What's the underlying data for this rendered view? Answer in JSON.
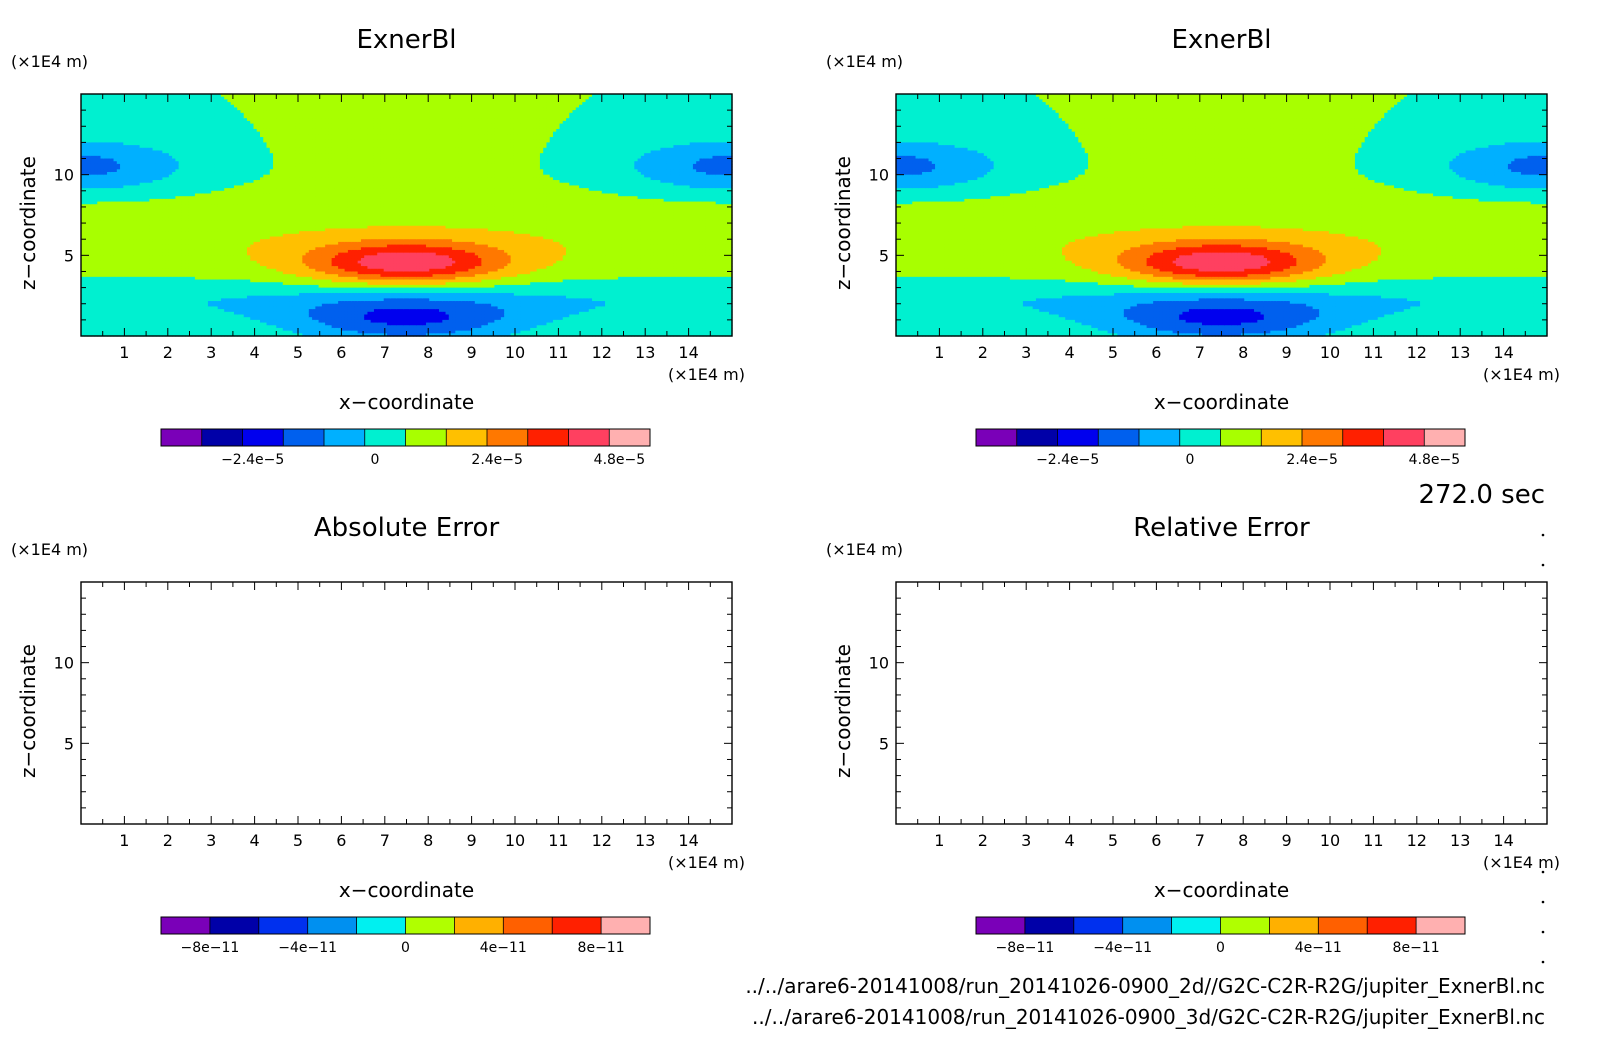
{
  "panels": [
    {
      "title": "ExnerBl",
      "unit_top": "(×1E4 m)",
      "unit_right": "(×1E4 m)",
      "ylabel": "z−coordinate",
      "xlabel": "x−coordinate"
    },
    {
      "title": "ExnerBl",
      "unit_top": "(×1E4 m)",
      "unit_right": "(×1E4 m)",
      "ylabel": "z−coordinate",
      "xlabel": "x−coordinate"
    },
    {
      "title": "Absolute Error",
      "unit_top": "(×1E4 m)",
      "unit_right": "(×1E4 m)",
      "ylabel": "z−coordinate",
      "xlabel": "x−coordinate"
    },
    {
      "title": "Relative Error",
      "unit_top": "(×1E4 m)",
      "unit_right": "(×1E4 m)",
      "ylabel": "z−coordinate",
      "xlabel": "x−coordinate"
    }
  ],
  "time_label": "272.0 sec",
  "file_lines": [
    "../../arare6-20141008/run_20141026-0900_2d//G2C-C2R-R2G/jupiter_ExnerBl.nc",
    "../../arare6-20141008/run_20141026-0900_3d/G2C-C2R-R2G/jupiter_ExnerBl.nc"
  ],
  "chart_data": [
    {
      "type": "heatmap",
      "title": "ExnerBl",
      "xlabel": "x−coordinate",
      "ylabel": "z−coordinate",
      "xlim": [
        0,
        15
      ],
      "ylim": [
        0,
        15
      ],
      "xticks": [
        "1",
        "2",
        "3",
        "4",
        "5",
        "6",
        "7",
        "8",
        "9",
        "10",
        "11",
        "12",
        "13",
        "14"
      ],
      "yticks": [
        "5",
        "10"
      ],
      "field": {
        "center_x": 7.5,
        "positive_peak": 5.2e-05,
        "positive_peak_z": 4.5,
        "negative_min": -3.4e-05,
        "negative_min_z": 1.0,
        "upper_negative_z": 10.5,
        "upper_negative_amp": -2.8e-05
      },
      "colorbar": {
        "levels": [
          -3.6e-05,
          -2.4e-05,
          -1.2e-05,
          0,
          1.2e-05,
          2.4e-05,
          3.6e-05,
          4.8e-05
        ],
        "tick_labels": [
          "−2.4e−5",
          "0",
          "2.4e−5",
          "4.8e−5"
        ],
        "tick_values": [
          -2.4e-05,
          0,
          2.4e-05,
          4.8e-05
        ],
        "min": -4.2e-05,
        "max": 5.4e-05,
        "colors": [
          "#7a00b8",
          "#0000a8",
          "#0000ee",
          "#0060ee",
          "#00b0ff",
          "#00f0d0",
          "#a8ff00",
          "#ffc000",
          "#ff7800",
          "#ff2000",
          "#ff4060",
          "#ffb0b0"
        ]
      }
    },
    {
      "type": "heatmap",
      "title": "ExnerBl",
      "xlabel": "x−coordinate",
      "ylabel": "z−coordinate",
      "xlim": [
        0,
        15
      ],
      "ylim": [
        0,
        15
      ],
      "xticks": [
        "1",
        "2",
        "3",
        "4",
        "5",
        "6",
        "7",
        "8",
        "9",
        "10",
        "11",
        "12",
        "13",
        "14"
      ],
      "yticks": [
        "5",
        "10"
      ],
      "field": {
        "center_x": 7.5,
        "positive_peak": 5.2e-05,
        "positive_peak_z": 4.5,
        "negative_min": -3.4e-05,
        "negative_min_z": 1.0,
        "upper_negative_z": 10.5,
        "upper_negative_amp": -2.8e-05
      },
      "colorbar": {
        "levels": [
          -3.6e-05,
          -2.4e-05,
          -1.2e-05,
          0,
          1.2e-05,
          2.4e-05,
          3.6e-05,
          4.8e-05
        ],
        "tick_labels": [
          "−2.4e−5",
          "0",
          "2.4e−5",
          "4.8e−5"
        ],
        "tick_values": [
          -2.4e-05,
          0,
          2.4e-05,
          4.8e-05
        ],
        "min": -4.2e-05,
        "max": 5.4e-05,
        "colors": [
          "#7a00b8",
          "#0000a8",
          "#0000ee",
          "#0060ee",
          "#00b0ff",
          "#00f0d0",
          "#a8ff00",
          "#ffc000",
          "#ff7800",
          "#ff2000",
          "#ff4060",
          "#ffb0b0"
        ]
      }
    },
    {
      "type": "heatmap",
      "title": "Absolute Error",
      "xlabel": "x−coordinate",
      "ylabel": "z−coordinate",
      "xlim": [
        0,
        15
      ],
      "ylim": [
        0,
        15
      ],
      "xticks": [
        "1",
        "2",
        "3",
        "4",
        "5",
        "6",
        "7",
        "8",
        "9",
        "10",
        "11",
        "12",
        "13",
        "14"
      ],
      "yticks": [
        "5",
        "10"
      ],
      "field": null,
      "colorbar": {
        "tick_labels": [
          "−8e−11",
          "−4e−11",
          "0",
          "4e−11",
          "8e−11"
        ],
        "tick_values": [
          -8e-11,
          -4e-11,
          0,
          4e-11,
          8e-11
        ],
        "min": -1e-10,
        "max": 1e-10,
        "colors": [
          "#7a00b8",
          "#0000a8",
          "#0030ee",
          "#0090f0",
          "#00f0f0",
          "#b0ff00",
          "#ffb000",
          "#ff6000",
          "#ff2000",
          "#ffb0b0"
        ]
      }
    },
    {
      "type": "heatmap",
      "title": "Relative Error",
      "xlabel": "x−coordinate",
      "ylabel": "z−coordinate",
      "xlim": [
        0,
        15
      ],
      "ylim": [
        0,
        15
      ],
      "xticks": [
        "1",
        "2",
        "3",
        "4",
        "5",
        "6",
        "7",
        "8",
        "9",
        "10",
        "11",
        "12",
        "13",
        "14"
      ],
      "yticks": [
        "5",
        "10"
      ],
      "field": null,
      "colorbar": {
        "tick_labels": [
          "−8e−11",
          "−4e−11",
          "0",
          "4e−11",
          "8e−11"
        ],
        "tick_values": [
          -8e-11,
          -4e-11,
          0,
          4e-11,
          8e-11
        ],
        "min": -1e-10,
        "max": 1e-10,
        "colors": [
          "#7a00b8",
          "#0000a8",
          "#0030ee",
          "#0090f0",
          "#00f0f0",
          "#b0ff00",
          "#ffb000",
          "#ff6000",
          "#ff2000",
          "#ffb0b0"
        ]
      }
    }
  ]
}
